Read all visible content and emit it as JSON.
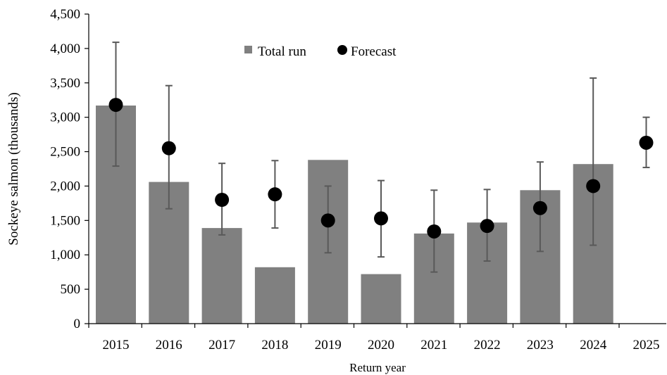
{
  "chart_data": {
    "type": "bar",
    "xlabel": "Return year",
    "ylabel": "Sockeye salmon (thousands)",
    "ylim": [
      0,
      4500
    ],
    "yticks": [
      0,
      500,
      1000,
      1500,
      2000,
      2500,
      3000,
      3500,
      4000,
      4500
    ],
    "ytick_labels": [
      "0",
      "500",
      "1,000",
      "1,500",
      "2,000",
      "2,500",
      "3,000",
      "3,500",
      "4,000",
      "4,500"
    ],
    "categories": [
      "2015",
      "2016",
      "2017",
      "2018",
      "2019",
      "2020",
      "2021",
      "2022",
      "2023",
      "2024",
      "2025"
    ],
    "grid": false,
    "legend_position": "top-center",
    "series": [
      {
        "name": "Total run",
        "kind": "bar",
        "color": "#808080",
        "values": [
          3170,
          2060,
          1390,
          820,
          2380,
          720,
          1310,
          1470,
          1940,
          2320,
          null
        ]
      },
      {
        "name": "Forecast",
        "kind": "point",
        "color": "#000000",
        "values": [
          3180,
          2550,
          1800,
          1880,
          1500,
          1530,
          1340,
          1420,
          1680,
          2000,
          2630
        ],
        "error_low": [
          2290,
          1670,
          1290,
          1390,
          1030,
          970,
          750,
          910,
          1050,
          1140,
          2270
        ],
        "error_high": [
          4090,
          3460,
          2330,
          2370,
          2000,
          2080,
          1940,
          1950,
          2350,
          3570,
          3000
        ]
      }
    ]
  }
}
